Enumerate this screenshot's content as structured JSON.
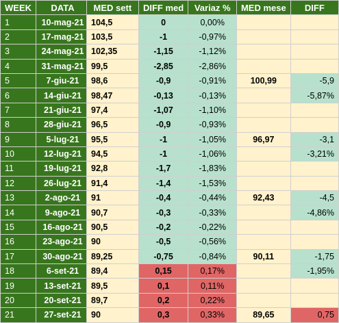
{
  "headers": {
    "week": "WEEK",
    "data": "DATA",
    "med_sett": "MED sett",
    "diff_med": "DIFF med",
    "variaz": "Variaz %",
    "med_mese": "MED mese",
    "diff": "DIFF"
  },
  "colors": {
    "header_green": "#38761d",
    "pale_yellow": "#fff2cc",
    "mint_green": "#b7e1cd",
    "salmon_red": "#e06666"
  },
  "rows": [
    {
      "week": "1",
      "date": "10-mag-21",
      "med": "104,5",
      "diff": "0",
      "var": "0,00%",
      "month": "",
      "mdiff": "",
      "tone": "neu",
      "mtone": "pale"
    },
    {
      "week": "2",
      "date": "17-mag-21",
      "med": "103,5",
      "diff": "-1",
      "var": "-0,97%",
      "month": "",
      "mdiff": "",
      "tone": "neg",
      "mtone": "pale"
    },
    {
      "week": "3",
      "date": "24-mag-21",
      "med": "102,35",
      "diff": "-1,15",
      "var": "-1,12%",
      "month": "",
      "mdiff": "",
      "tone": "neg",
      "mtone": "pale"
    },
    {
      "week": "4",
      "date": "31-mag-21",
      "med": "99,5",
      "diff": "-2,85",
      "var": "-2,86%",
      "month": "",
      "mdiff": "",
      "tone": "neg",
      "mtone": "pale"
    },
    {
      "week": "5",
      "date": "7-giu-21",
      "med": "98,6",
      "diff": "-0,9",
      "var": "-0,91%",
      "month": "100,99",
      "mdiff": "-5,9",
      "tone": "neg",
      "mtone": "neg"
    },
    {
      "week": "6",
      "date": "14-giu-21",
      "med": "98,47",
      "diff": "-0,13",
      "var": "-0,13%",
      "month": "",
      "mdiff": "-5,87%",
      "tone": "neg",
      "mtone": "neg"
    },
    {
      "week": "7",
      "date": "21-giu-21",
      "med": "97,4",
      "diff": "-1,07",
      "var": "-1,10%",
      "month": "",
      "mdiff": "",
      "tone": "neg",
      "mtone": "pale"
    },
    {
      "week": "8",
      "date": "28-giu-21",
      "med": "96,5",
      "diff": "-0,9",
      "var": "-0,93%",
      "month": "",
      "mdiff": "",
      "tone": "neg",
      "mtone": "pale"
    },
    {
      "week": "9",
      "date": "5-lug-21",
      "med": "95,5",
      "diff": "-1",
      "var": "-1,05%",
      "month": "96,97",
      "mdiff": "-3,1",
      "tone": "neg",
      "mtone": "neg"
    },
    {
      "week": "10",
      "date": "12-lug-21",
      "med": "94,5",
      "diff": "-1",
      "var": "-1,06%",
      "month": "",
      "mdiff": "-3,21%",
      "tone": "neg",
      "mtone": "neg"
    },
    {
      "week": "11",
      "date": "19-lug-21",
      "med": "92,8",
      "diff": "-1,7",
      "var": "-1,83%",
      "month": "",
      "mdiff": "",
      "tone": "neg",
      "mtone": "pale"
    },
    {
      "week": "12",
      "date": "26-lug-21",
      "med": "91,4",
      "diff": "-1,4",
      "var": "-1,53%",
      "month": "",
      "mdiff": "",
      "tone": "neg",
      "mtone": "pale"
    },
    {
      "week": "13",
      "date": "2-ago-21",
      "med": "91",
      "diff": "-0,4",
      "var": "-0,44%",
      "month": "92,43",
      "mdiff": "-4,5",
      "tone": "neg",
      "mtone": "neg"
    },
    {
      "week": "14",
      "date": "9-ago-21",
      "med": "90,7",
      "diff": "-0,3",
      "var": "-0,33%",
      "month": "",
      "mdiff": "-4,86%",
      "tone": "neg",
      "mtone": "neg"
    },
    {
      "week": "15",
      "date": "16-ago-21",
      "med": "90,5",
      "diff": "-0,2",
      "var": "-0,22%",
      "month": "",
      "mdiff": "",
      "tone": "neg",
      "mtone": "pale"
    },
    {
      "week": "16",
      "date": "23-ago-21",
      "med": "90",
      "diff": "-0,5",
      "var": "-0,56%",
      "month": "",
      "mdiff": "",
      "tone": "neg",
      "mtone": "pale"
    },
    {
      "week": "17",
      "date": "30-ago-21",
      "med": "89,25",
      "diff": "-0,75",
      "var": "-0,84%",
      "month": "90,11",
      "mdiff": "-1,75",
      "tone": "neg",
      "mtone": "neg"
    },
    {
      "week": "18",
      "date": "6-set-21",
      "med": "89,4",
      "diff": "0,15",
      "var": "0,17%",
      "month": "",
      "mdiff": "-1,95%",
      "tone": "pos",
      "mtone": "neg"
    },
    {
      "week": "19",
      "date": "13-set-21",
      "med": "89,5",
      "diff": "0,1",
      "var": "0,11%",
      "month": "",
      "mdiff": "",
      "tone": "pos",
      "mtone": "pale"
    },
    {
      "week": "20",
      "date": "20-set-21",
      "med": "89,7",
      "diff": "0,2",
      "var": "0,22%",
      "month": "",
      "mdiff": "",
      "tone": "pos",
      "mtone": "pale"
    },
    {
      "week": "21",
      "date": "27-set-21",
      "med": "90",
      "diff": "0,3",
      "var": "0,33%",
      "month": "89,65",
      "mdiff": "0,75",
      "tone": "pos",
      "mtone": "pos"
    }
  ]
}
